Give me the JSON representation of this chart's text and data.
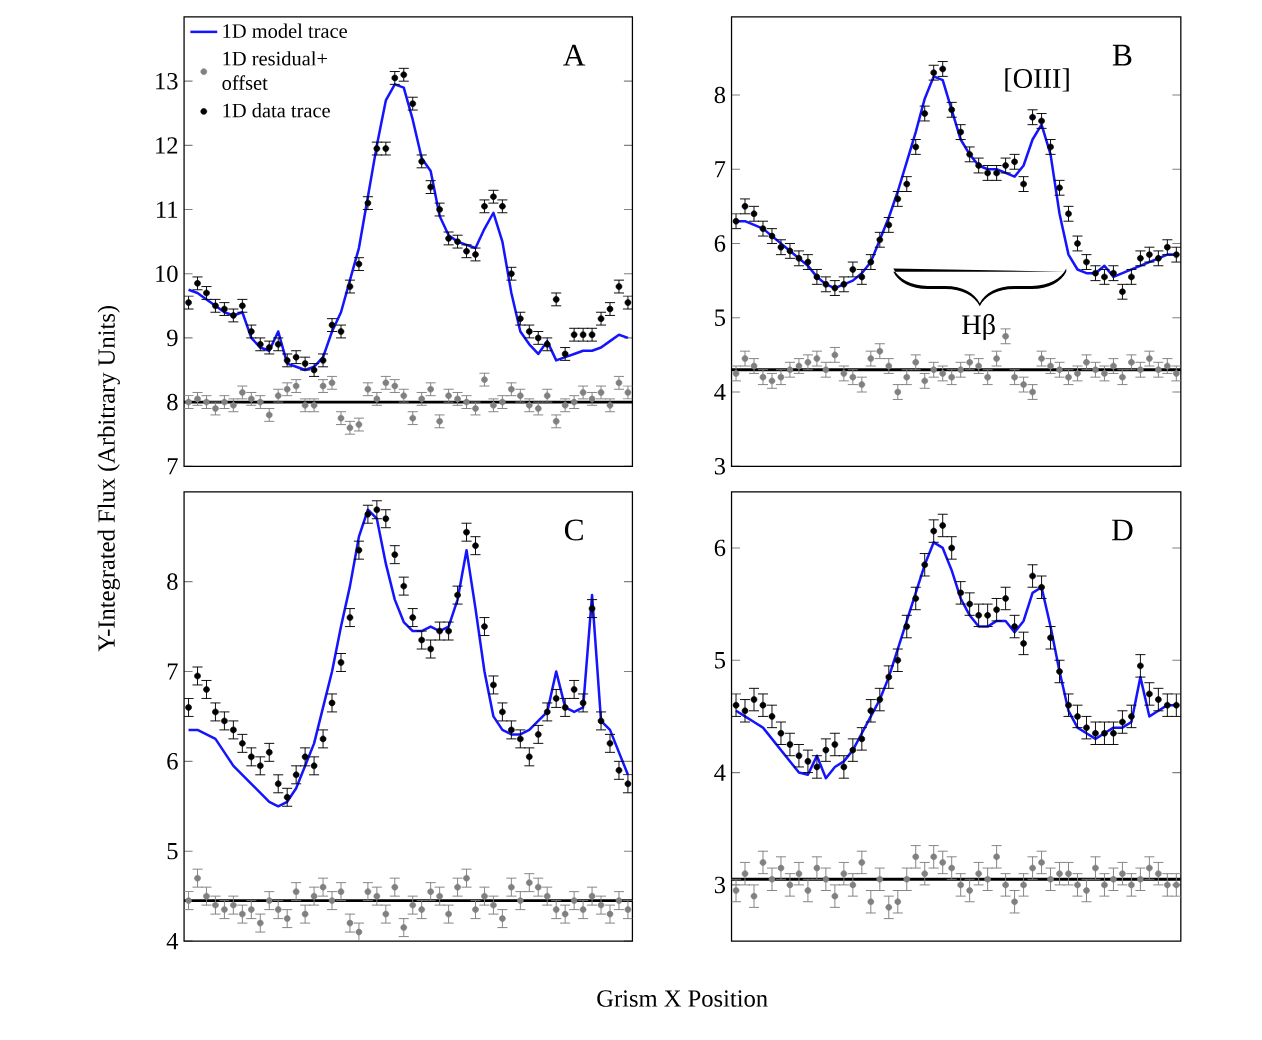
{
  "chart_data": [
    {
      "type": "scatter",
      "ylabel": "Y-Integrated Flux (Arbitrary Units)",
      "annotations": [
        "A"
      ],
      "categories": [
        null,
        null,
        null,
        null,
        null,
        null,
        null,
        null,
        null,
        null,
        null,
        null,
        null,
        null,
        null,
        null,
        null,
        null,
        null,
        null,
        null,
        null,
        null,
        null,
        null,
        null,
        null,
        null,
        null,
        null,
        null,
        null,
        null,
        null,
        null,
        null,
        null,
        null,
        null,
        null,
        null,
        null,
        null,
        null,
        null,
        null,
        null,
        null,
        null,
        null
      ],
      "ylim": [
        7,
        14
      ],
      "yticks": [
        7,
        8,
        9,
        10,
        11,
        12,
        13
      ],
      "tick_labels": "y",
      "marker": "circle",
      "legend": "top left",
      "ref_lines": [
        {
          "axis": "y",
          "value": 8.0,
          "color": "#000000"
        }
      ],
      "series": [
        {
          "name": "1D model trace",
          "type": "line",
          "marker": "none",
          "color": "#1414ff",
          "values": [
            9.75,
            9.7,
            9.6,
            9.5,
            9.4,
            9.35,
            9.4,
            9.0,
            8.85,
            8.8,
            9.1,
            8.6,
            8.55,
            8.5,
            8.55,
            8.7,
            9.1,
            9.4,
            9.9,
            10.4,
            11.2,
            12.0,
            12.7,
            12.95,
            12.9,
            12.4,
            11.8,
            11.6,
            10.9,
            10.6,
            10.5,
            10.45,
            10.4,
            10.7,
            10.95,
            10.5,
            9.7,
            9.1,
            8.9,
            8.75,
            8.95,
            8.65,
            8.7,
            8.75,
            8.8,
            8.8,
            8.85,
            8.95,
            9.05,
            9.0
          ]
        },
        {
          "name": "1D residual+ offset",
          "color": "#808080",
          "values": [
            8.0,
            8.05,
            8.0,
            7.9,
            8.0,
            7.95,
            8.15,
            8.05,
            8.0,
            7.8,
            8.1,
            8.2,
            8.25,
            7.95,
            7.95,
            8.25,
            8.3,
            7.75,
            7.6,
            7.65,
            8.2,
            8.05,
            8.3,
            8.25,
            8.1,
            7.75,
            8.05,
            8.2,
            7.7,
            8.1,
            8.05,
            8.0,
            7.9,
            8.35,
            7.95,
            8.0,
            8.2,
            8.1,
            7.95,
            7.9,
            8.1,
            7.7,
            7.95,
            8.0,
            8.15,
            8.05,
            8.15,
            7.95,
            8.3,
            8.15
          ],
          "errors": [
            0.1,
            0.1,
            0.1,
            0.1,
            0.1,
            0.1,
            0.1,
            0.1,
            0.1,
            0.1,
            0.1,
            0.1,
            0.1,
            0.1,
            0.1,
            0.1,
            0.1,
            0.1,
            0.1,
            0.1,
            0.1,
            0.1,
            0.1,
            0.1,
            0.1,
            0.1,
            0.1,
            0.1,
            0.1,
            0.1,
            0.1,
            0.1,
            0.1,
            0.1,
            0.1,
            0.1,
            0.1,
            0.1,
            0.1,
            0.1,
            0.1,
            0.1,
            0.1,
            0.1,
            0.1,
            0.1,
            0.1,
            0.1,
            0.1,
            0.1
          ]
        },
        {
          "name": "1D data trace",
          "color": "#000000",
          "values": [
            9.55,
            9.85,
            9.7,
            9.5,
            9.45,
            9.35,
            9.5,
            9.1,
            8.9,
            8.85,
            8.9,
            8.65,
            8.7,
            8.6,
            8.5,
            8.65,
            9.2,
            9.1,
            9.8,
            10.15,
            11.1,
            11.95,
            11.95,
            13.05,
            13.1,
            12.65,
            11.75,
            11.35,
            11.0,
            10.55,
            10.5,
            10.35,
            10.3,
            11.05,
            11.2,
            11.05,
            10.0,
            9.3,
            9.1,
            9.0,
            8.9,
            9.6,
            8.75,
            9.05,
            9.05,
            9.05,
            9.3,
            9.45,
            9.8,
            9.55
          ],
          "errors": [
            0.1,
            0.1,
            0.1,
            0.1,
            0.1,
            0.1,
            0.1,
            0.1,
            0.1,
            0.1,
            0.1,
            0.1,
            0.1,
            0.1,
            0.1,
            0.1,
            0.1,
            0.1,
            0.1,
            0.1,
            0.1,
            0.1,
            0.1,
            0.1,
            0.1,
            0.1,
            0.1,
            0.1,
            0.1,
            0.1,
            0.1,
            0.1,
            0.1,
            0.1,
            0.1,
            0.1,
            0.1,
            0.1,
            0.1,
            0.1,
            0.1,
            0.1,
            0.1,
            0.1,
            0.1,
            0.1,
            0.1,
            0.1,
            0.1,
            0.1
          ]
        }
      ]
    },
    {
      "type": "scatter",
      "annotations": [
        "B",
        "[OIII]",
        "Hβ"
      ],
      "categories": [
        null,
        null,
        null,
        null,
        null,
        null,
        null,
        null,
        null,
        null,
        null,
        null,
        null,
        null,
        null,
        null,
        null,
        null,
        null,
        null,
        null,
        null,
        null,
        null,
        null,
        null,
        null,
        null,
        null,
        null,
        null,
        null,
        null,
        null,
        null,
        null,
        null,
        null,
        null,
        null,
        null,
        null,
        null,
        null,
        null,
        null,
        null,
        null,
        null,
        null
      ],
      "ylim": [
        3,
        9.05
      ],
      "yticks": [
        3,
        4,
        5,
        6,
        7,
        8
      ],
      "tick_labels": "y",
      "marker": "circle",
      "ref_lines": [
        {
          "axis": "y",
          "value": 4.3,
          "color": "#000000"
        }
      ],
      "series": [
        {
          "type": "line",
          "marker": "none",
          "color": "#1414ff",
          "values": [
            6.3,
            6.3,
            6.25,
            6.2,
            6.1,
            6.0,
            5.9,
            5.8,
            5.7,
            5.55,
            5.45,
            5.4,
            5.45,
            5.5,
            5.6,
            5.75,
            6.05,
            6.35,
            6.7,
            7.1,
            7.5,
            7.95,
            8.25,
            8.2,
            7.8,
            7.4,
            7.2,
            7.05,
            7.0,
            7.0,
            6.95,
            6.9,
            7.05,
            7.4,
            7.6,
            7.2,
            6.4,
            5.85,
            5.65,
            5.6,
            5.6,
            5.7,
            5.55,
            5.6,
            5.65,
            5.7,
            5.75,
            5.8,
            5.85,
            5.85
          ]
        },
        {
          "color": "#808080",
          "values": [
            4.25,
            4.45,
            4.35,
            4.2,
            4.15,
            4.2,
            4.3,
            4.35,
            4.4,
            4.45,
            4.3,
            4.5,
            4.25,
            4.2,
            4.1,
            4.45,
            4.55,
            4.35,
            4.0,
            4.2,
            4.4,
            4.15,
            4.3,
            4.25,
            4.2,
            4.3,
            4.4,
            4.35,
            4.2,
            4.45,
            4.75,
            4.2,
            4.1,
            4.0,
            4.45,
            4.35,
            4.3,
            4.2,
            4.25,
            4.4,
            4.3,
            4.25,
            4.35,
            4.2,
            4.4,
            4.3,
            4.45,
            4.3,
            4.35,
            4.25
          ],
          "errors": [
            0.1,
            0.1,
            0.1,
            0.1,
            0.1,
            0.1,
            0.1,
            0.1,
            0.1,
            0.1,
            0.1,
            0.1,
            0.1,
            0.1,
            0.1,
            0.1,
            0.1,
            0.1,
            0.1,
            0.1,
            0.1,
            0.1,
            0.1,
            0.1,
            0.1,
            0.1,
            0.1,
            0.1,
            0.1,
            0.1,
            0.1,
            0.1,
            0.1,
            0.1,
            0.1,
            0.1,
            0.1,
            0.1,
            0.1,
            0.1,
            0.1,
            0.1,
            0.1,
            0.1,
            0.1,
            0.1,
            0.1,
            0.1,
            0.1,
            0.1
          ]
        },
        {
          "color": "#000000",
          "values": [
            6.3,
            6.5,
            6.4,
            6.2,
            6.1,
            5.95,
            5.9,
            5.8,
            5.75,
            5.55,
            5.45,
            5.4,
            5.45,
            5.65,
            5.55,
            5.75,
            6.05,
            6.25,
            6.6,
            6.8,
            7.3,
            7.75,
            8.3,
            8.35,
            7.8,
            7.5,
            7.2,
            7.05,
            6.95,
            6.95,
            7.05,
            7.1,
            6.8,
            7.7,
            7.65,
            7.3,
            6.75,
            6.4,
            6.0,
            5.75,
            5.6,
            5.55,
            5.6,
            5.35,
            5.55,
            5.8,
            5.85,
            5.8,
            5.95,
            5.85
          ],
          "errors": [
            0.1,
            0.1,
            0.1,
            0.1,
            0.1,
            0.1,
            0.1,
            0.1,
            0.1,
            0.1,
            0.1,
            0.1,
            0.1,
            0.1,
            0.1,
            0.1,
            0.1,
            0.1,
            0.1,
            0.1,
            0.1,
            0.1,
            0.1,
            0.1,
            0.1,
            0.1,
            0.1,
            0.1,
            0.1,
            0.1,
            0.1,
            0.1,
            0.1,
            0.1,
            0.1,
            0.1,
            0.1,
            0.1,
            0.1,
            0.1,
            0.1,
            0.1,
            0.1,
            0.1,
            0.1,
            0.1,
            0.1,
            0.1,
            0.1,
            0.1
          ]
        }
      ]
    },
    {
      "type": "scatter",
      "xlabel": "Grism X Position",
      "annotations": [
        "C"
      ],
      "categories": [
        null,
        null,
        null,
        null,
        null,
        null,
        null,
        null,
        null,
        null,
        null,
        null,
        null,
        null,
        null,
        null,
        null,
        null,
        null,
        null,
        null,
        null,
        null,
        null,
        null,
        null,
        null,
        null,
        null,
        null,
        null,
        null,
        null,
        null,
        null,
        null,
        null,
        null,
        null,
        null,
        null,
        null,
        null,
        null,
        null,
        null,
        null,
        null,
        null,
        null
      ],
      "ylim": [
        4,
        9
      ],
      "yticks": [
        4,
        5,
        6,
        7,
        8
      ],
      "tick_labels": "y",
      "marker": "circle",
      "ref_lines": [
        {
          "axis": "y",
          "value": 4.45,
          "color": "#000000"
        }
      ],
      "series": [
        {
          "type": "line",
          "marker": "none",
          "color": "#1414ff",
          "values": [
            6.35,
            6.35,
            6.3,
            6.25,
            6.1,
            5.95,
            5.85,
            5.75,
            5.65,
            5.55,
            5.5,
            5.55,
            5.7,
            5.95,
            6.2,
            6.6,
            7.0,
            7.5,
            7.95,
            8.5,
            8.8,
            8.7,
            8.2,
            7.8,
            7.55,
            7.45,
            7.45,
            7.5,
            7.45,
            7.5,
            7.8,
            8.35,
            7.7,
            7.0,
            6.5,
            6.35,
            6.3,
            6.3,
            6.35,
            6.45,
            6.55,
            7.0,
            6.6,
            6.55,
            6.6,
            7.85,
            6.45,
            6.35,
            6.1,
            5.85
          ]
        },
        {
          "color": "#808080",
          "values": [
            4.45,
            4.7,
            4.5,
            4.4,
            4.35,
            4.4,
            4.3,
            4.35,
            4.2,
            4.45,
            4.35,
            4.25,
            4.55,
            4.3,
            4.5,
            4.6,
            4.45,
            4.55,
            4.2,
            4.1,
            4.55,
            4.5,
            4.3,
            4.6,
            4.15,
            4.4,
            4.35,
            4.55,
            4.5,
            4.3,
            4.6,
            4.7,
            4.35,
            4.5,
            4.4,
            4.25,
            4.6,
            4.45,
            4.65,
            4.6,
            4.5,
            4.35,
            4.3,
            4.45,
            4.35,
            4.5,
            4.4,
            4.3,
            4.45,
            4.35
          ],
          "errors": [
            0.1,
            0.1,
            0.1,
            0.1,
            0.1,
            0.1,
            0.1,
            0.1,
            0.1,
            0.1,
            0.1,
            0.1,
            0.1,
            0.1,
            0.1,
            0.1,
            0.1,
            0.1,
            0.1,
            0.1,
            0.1,
            0.1,
            0.1,
            0.1,
            0.1,
            0.1,
            0.1,
            0.1,
            0.1,
            0.1,
            0.1,
            0.1,
            0.1,
            0.1,
            0.1,
            0.1,
            0.1,
            0.1,
            0.1,
            0.1,
            0.1,
            0.1,
            0.1,
            0.1,
            0.1,
            0.1,
            0.1,
            0.1,
            0.1,
            0.1
          ]
        },
        {
          "color": "#000000",
          "values": [
            6.6,
            6.95,
            6.8,
            6.55,
            6.45,
            6.35,
            6.2,
            6.05,
            5.95,
            6.1,
            5.75,
            5.6,
            5.85,
            6.05,
            5.95,
            6.25,
            6.65,
            7.1,
            7.6,
            8.35,
            8.75,
            8.8,
            8.7,
            8.3,
            7.95,
            7.6,
            7.35,
            7.25,
            7.45,
            7.45,
            7.85,
            8.55,
            8.4,
            7.5,
            6.85,
            6.55,
            6.35,
            6.25,
            6.05,
            6.3,
            6.55,
            6.7,
            6.6,
            6.8,
            6.65,
            7.7,
            6.45,
            6.2,
            5.9,
            5.75
          ],
          "errors": [
            0.1,
            0.1,
            0.1,
            0.1,
            0.1,
            0.1,
            0.1,
            0.1,
            0.1,
            0.1,
            0.1,
            0.1,
            0.1,
            0.1,
            0.1,
            0.1,
            0.1,
            0.1,
            0.1,
            0.1,
            0.1,
            0.1,
            0.1,
            0.1,
            0.1,
            0.1,
            0.1,
            0.1,
            0.1,
            0.1,
            0.1,
            0.1,
            0.1,
            0.1,
            0.1,
            0.1,
            0.1,
            0.1,
            0.1,
            0.1,
            0.1,
            0.1,
            0.1,
            0.1,
            0.1,
            0.1,
            0.1,
            0.1,
            0.1,
            0.1
          ]
        }
      ]
    },
    {
      "type": "scatter",
      "annotations": [
        "D"
      ],
      "categories": [
        null,
        null,
        null,
        null,
        null,
        null,
        null,
        null,
        null,
        null,
        null,
        null,
        null,
        null,
        null,
        null,
        null,
        null,
        null,
        null,
        null,
        null,
        null,
        null,
        null,
        null,
        null,
        null,
        null,
        null,
        null,
        null,
        null,
        null,
        null,
        null,
        null,
        null,
        null,
        null,
        null,
        null,
        null,
        null,
        null,
        null,
        null,
        null,
        null,
        null
      ],
      "ylim": [
        2.5,
        6.5
      ],
      "yticks": [
        3,
        4,
        5,
        6
      ],
      "tick_labels": "y",
      "marker": "circle",
      "ref_lines": [
        {
          "axis": "y",
          "value": 3.05,
          "color": "#000000"
        }
      ],
      "series": [
        {
          "type": "line",
          "marker": "none",
          "color": "#1414ff",
          "values": [
            4.55,
            4.5,
            4.45,
            4.4,
            4.3,
            4.2,
            4.1,
            4.0,
            3.98,
            4.15,
            3.95,
            4.05,
            4.1,
            4.2,
            4.35,
            4.5,
            4.65,
            4.85,
            5.1,
            5.35,
            5.6,
            5.85,
            6.05,
            6.0,
            5.8,
            5.55,
            5.4,
            5.3,
            5.3,
            5.35,
            5.35,
            5.25,
            5.35,
            5.6,
            5.65,
            5.3,
            4.9,
            4.55,
            4.4,
            4.35,
            4.3,
            4.35,
            4.4,
            4.4,
            4.45,
            4.85,
            4.5,
            4.55,
            4.6,
            4.6
          ]
        },
        {
          "color": "#808080",
          "values": [
            2.95,
            3.1,
            2.9,
            3.2,
            3.05,
            3.15,
            3.0,
            3.1,
            2.95,
            3.15,
            3.05,
            2.9,
            3.1,
            3.0,
            3.2,
            2.85,
            3.05,
            2.8,
            2.85,
            3.05,
            3.25,
            3.1,
            3.25,
            3.2,
            3.15,
            3.0,
            2.95,
            3.1,
            3.05,
            3.25,
            3.0,
            2.85,
            3.0,
            3.15,
            3.2,
            3.05,
            3.1,
            3.1,
            3.0,
            2.95,
            3.15,
            3.0,
            3.05,
            3.1,
            3.0,
            3.05,
            3.15,
            3.1,
            3.0,
            3.0
          ],
          "errors": [
            0.1,
            0.1,
            0.1,
            0.1,
            0.1,
            0.1,
            0.1,
            0.1,
            0.1,
            0.1,
            0.1,
            0.1,
            0.1,
            0.1,
            0.1,
            0.1,
            0.1,
            0.1,
            0.1,
            0.1,
            0.1,
            0.1,
            0.1,
            0.1,
            0.1,
            0.1,
            0.1,
            0.1,
            0.1,
            0.1,
            0.1,
            0.1,
            0.1,
            0.1,
            0.1,
            0.1,
            0.1,
            0.1,
            0.1,
            0.1,
            0.1,
            0.1,
            0.1,
            0.1,
            0.1,
            0.1,
            0.1,
            0.1,
            0.1,
            0.1
          ]
        },
        {
          "color": "#000000",
          "values": [
            4.6,
            4.55,
            4.65,
            4.6,
            4.5,
            4.35,
            4.25,
            4.15,
            4.1,
            4.05,
            4.2,
            4.25,
            4.05,
            4.2,
            4.3,
            4.55,
            4.65,
            4.85,
            5.0,
            5.3,
            5.55,
            5.85,
            6.15,
            6.2,
            6.0,
            5.6,
            5.5,
            5.4,
            5.4,
            5.45,
            5.55,
            5.3,
            5.15,
            5.75,
            5.65,
            5.2,
            4.9,
            4.6,
            4.5,
            4.4,
            4.35,
            4.35,
            4.35,
            4.45,
            4.5,
            4.95,
            4.7,
            4.65,
            4.6,
            4.6
          ],
          "errors": [
            0.1,
            0.1,
            0.1,
            0.1,
            0.1,
            0.1,
            0.1,
            0.1,
            0.1,
            0.1,
            0.1,
            0.1,
            0.1,
            0.1,
            0.1,
            0.1,
            0.1,
            0.1,
            0.1,
            0.1,
            0.1,
            0.1,
            0.1,
            0.1,
            0.1,
            0.1,
            0.1,
            0.1,
            0.1,
            0.1,
            0.1,
            0.1,
            0.1,
            0.1,
            0.1,
            0.1,
            0.1,
            0.1,
            0.1,
            0.1,
            0.1,
            0.1,
            0.1,
            0.1,
            0.1,
            0.1,
            0.1,
            0.1,
            0.1,
            0.1
          ]
        }
      ]
    }
  ]
}
